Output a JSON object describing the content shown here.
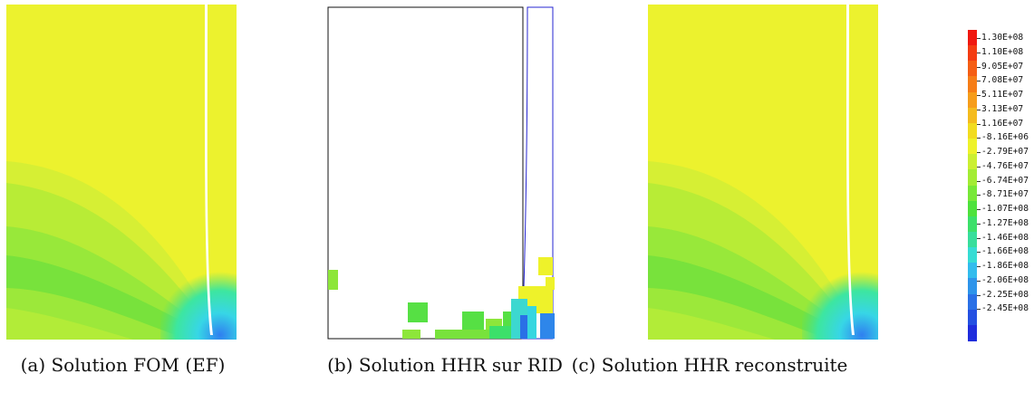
{
  "captions": {
    "a": "(a) Solution FOM (EF)",
    "b": "(b) Solution HHR sur RID",
    "c": "(c) Solution HHR reconstruite"
  },
  "colorbar": {
    "labels": [
      "1.30E+08",
      "1.10E+08",
      "9.05E+07",
      "7.08E+07",
      "5.11E+07",
      "3.13E+07",
      "1.16E+07",
      "-8.16E+06",
      "-2.79E+07",
      "-4.76E+07",
      "-6.74E+07",
      "-8.71E+07",
      "-1.07E+08",
      "-1.27E+08",
      "-1.46E+08",
      "-1.66E+08",
      "-1.86E+08",
      "-2.06E+08",
      "-2.25E+08",
      "-2.45E+08"
    ],
    "colors": [
      "#f01810",
      "#f43c12",
      "#f55e14",
      "#f67d17",
      "#f69d1b",
      "#f4bb1e",
      "#f2dc20",
      "#eef22a",
      "#cbef32",
      "#a3ec34",
      "#78e838",
      "#4ee23c",
      "#3ce06a",
      "#38de9c",
      "#36dcd4",
      "#32bced",
      "#2e94ea",
      "#2a70e6",
      "#2450e2",
      "#1f2ddc"
    ]
  }
}
